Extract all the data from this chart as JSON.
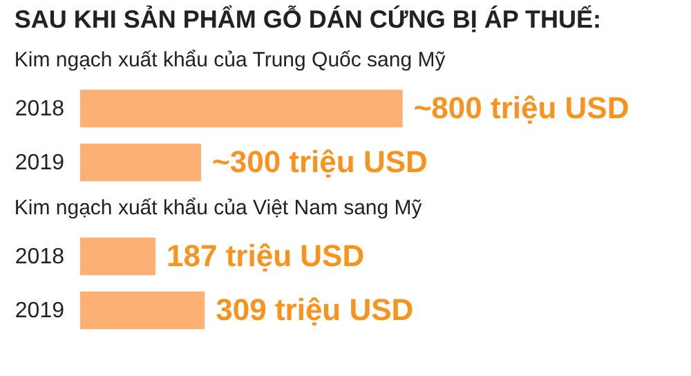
{
  "chart_data": [
    {
      "type": "bar",
      "orientation": "horizontal",
      "title": "SAU KHI SẢN PHẨM GỖ DÁN CỨNG BỊ ÁP THUẾ:",
      "subtitle": "Kim ngạch xuất khẩu của Trung Quốc sang Mỹ",
      "categories": [
        "2018",
        "2019"
      ],
      "values": [
        800,
        300
      ],
      "color": "#fdb073",
      "value_labels": [
        "~800 triệu USD",
        "~300 triệu USD"
      ]
    },
    {
      "type": "bar",
      "orientation": "horizontal",
      "title": "Kim ngạch xuất khẩu của Việt Nam sang Mỹ",
      "categories": [
        "2018",
        "2019"
      ],
      "values": [
        187,
        309
      ],
      "color": "#fdb073",
      "value_labels": [
        "187 triệu USD",
        "309 triệu USD"
      ]
    }
  ]
}
